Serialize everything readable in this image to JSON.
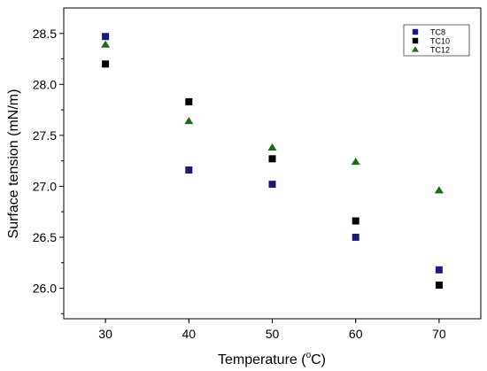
{
  "chart_data": {
    "type": "scatter",
    "title": "",
    "xlabel": {
      "text": "Temperature (",
      "sup": "o",
      "suffix": "C)"
    },
    "ylabel": "Surface tension (mN/m)",
    "xlim": [
      25,
      75
    ],
    "ylim": [
      25.7,
      28.75
    ],
    "x_ticks": [
      30,
      40,
      50,
      60,
      70
    ],
    "y_ticks": [
      26.0,
      26.5,
      27.0,
      27.5,
      28.0,
      28.5
    ],
    "y_tick_labels": [
      "26.0",
      "26.5",
      "27.0",
      "27.5",
      "28.0",
      "28.5"
    ],
    "grid": false,
    "legend": "top-right",
    "series": [
      {
        "name": "TC8",
        "marker": "square",
        "color": "#1a1a80",
        "x": [
          30,
          40,
          50,
          60,
          70
        ],
        "y": [
          28.47,
          27.16,
          27.02,
          26.5,
          26.18
        ]
      },
      {
        "name": "TC10",
        "marker": "square",
        "color": "#000000",
        "x": [
          30,
          40,
          50,
          60,
          70
        ],
        "y": [
          28.2,
          27.83,
          27.27,
          26.66,
          26.03
        ]
      },
      {
        "name": "TC12",
        "marker": "triangle",
        "color": "#1a6b1a",
        "x": [
          30,
          40,
          50,
          60,
          70
        ],
        "y": [
          28.39,
          27.64,
          27.38,
          27.24,
          26.96
        ]
      }
    ]
  }
}
